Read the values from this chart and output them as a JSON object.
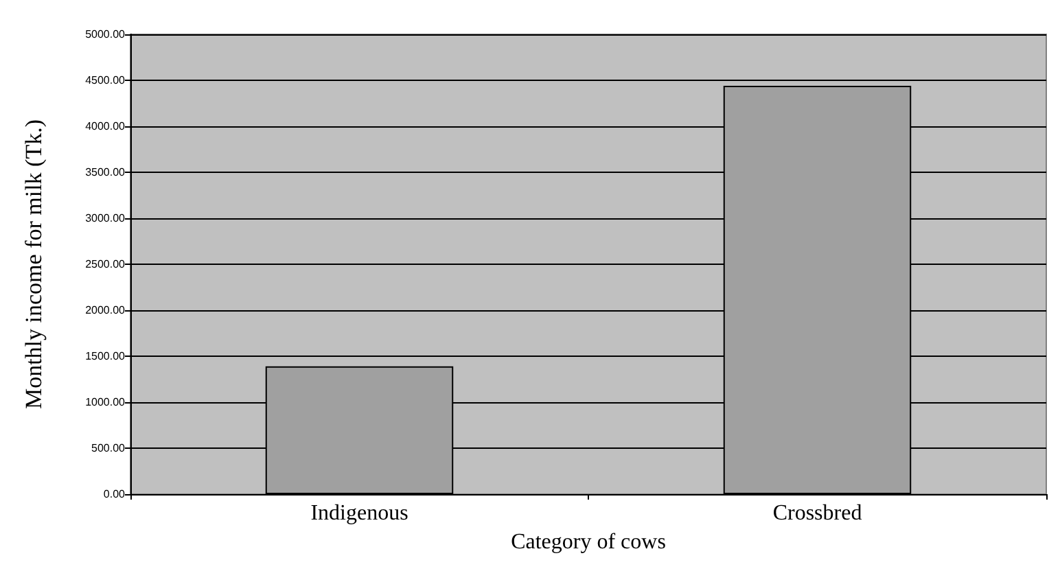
{
  "chart_data": {
    "type": "bar",
    "xlabel": "Category of cows",
    "ylabel": "Monthly income for milk (Tk.)",
    "categories": [
      "Indigenous",
      "Crossbred"
    ],
    "values": [
      1390,
      4440
    ],
    "color": "#a0a0a0",
    "ylim": [
      0,
      5000
    ],
    "yticks": [
      {
        "value": 0,
        "label": "0.00"
      },
      {
        "value": 500,
        "label": "500.00"
      },
      {
        "value": 1000,
        "label": "1000.00"
      },
      {
        "value": 1500,
        "label": "1500.00"
      },
      {
        "value": 2000,
        "label": "2000.00"
      },
      {
        "value": 2500,
        "label": "2500.00"
      },
      {
        "value": 3000,
        "label": "3000.00"
      },
      {
        "value": 3500,
        "label": "3500.00"
      },
      {
        "value": 4000,
        "label": "4000.00"
      },
      {
        "value": 4500,
        "label": "4500.00"
      },
      {
        "value": 5000,
        "label": "5000.00"
      }
    ],
    "grid": "y"
  }
}
